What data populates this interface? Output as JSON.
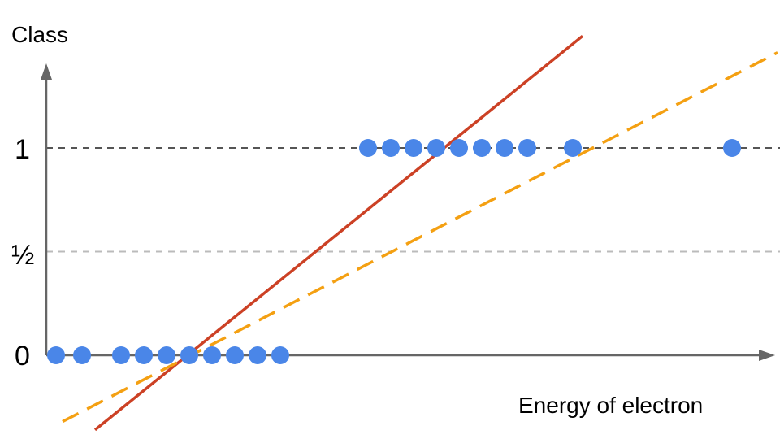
{
  "chart_data": {
    "type": "scatter",
    "ylabel": "Class",
    "xlabel": "Energy of electron",
    "y_ticks": [
      {
        "value": 0,
        "label": "0"
      },
      {
        "value": 0.5,
        "label": "½"
      },
      {
        "value": 1,
        "label": "1"
      }
    ],
    "reference_lines": [
      {
        "y": 1,
        "style": "dashed",
        "color": "#555555"
      },
      {
        "y": 0.5,
        "style": "dashed",
        "color": "#bbbbbb"
      }
    ],
    "points": [
      {
        "x": 0.3,
        "y": 0
      },
      {
        "x": 1.1,
        "y": 0
      },
      {
        "x": 2.3,
        "y": 0
      },
      {
        "x": 3.0,
        "y": 0
      },
      {
        "x": 3.7,
        "y": 0
      },
      {
        "x": 4.4,
        "y": 0
      },
      {
        "x": 5.1,
        "y": 0
      },
      {
        "x": 5.8,
        "y": 0
      },
      {
        "x": 6.5,
        "y": 0
      },
      {
        "x": 7.2,
        "y": 0
      },
      {
        "x": 9.9,
        "y": 1
      },
      {
        "x": 10.6,
        "y": 1
      },
      {
        "x": 11.3,
        "y": 1
      },
      {
        "x": 12.0,
        "y": 1
      },
      {
        "x": 12.7,
        "y": 1
      },
      {
        "x": 13.4,
        "y": 1
      },
      {
        "x": 14.1,
        "y": 1
      },
      {
        "x": 14.8,
        "y": 1
      },
      {
        "x": 16.2,
        "y": 1
      },
      {
        "x": 21.1,
        "y": 1
      }
    ],
    "lines": [
      {
        "x1": 1.5,
        "y1": -0.36,
        "x2": 16.5,
        "y2": 1.54,
        "color": "#cc4125",
        "style": "solid"
      },
      {
        "x1": 0.5,
        "y1": -0.32,
        "x2": 22.5,
        "y2": 1.46,
        "color": "#f4a012",
        "style": "dashed"
      }
    ],
    "xlim": [
      -1.5,
      23
    ],
    "ylim": [
      -0.45,
      1.85
    ],
    "colors": {
      "points": "#4a86e8",
      "axis": "#666666"
    }
  }
}
